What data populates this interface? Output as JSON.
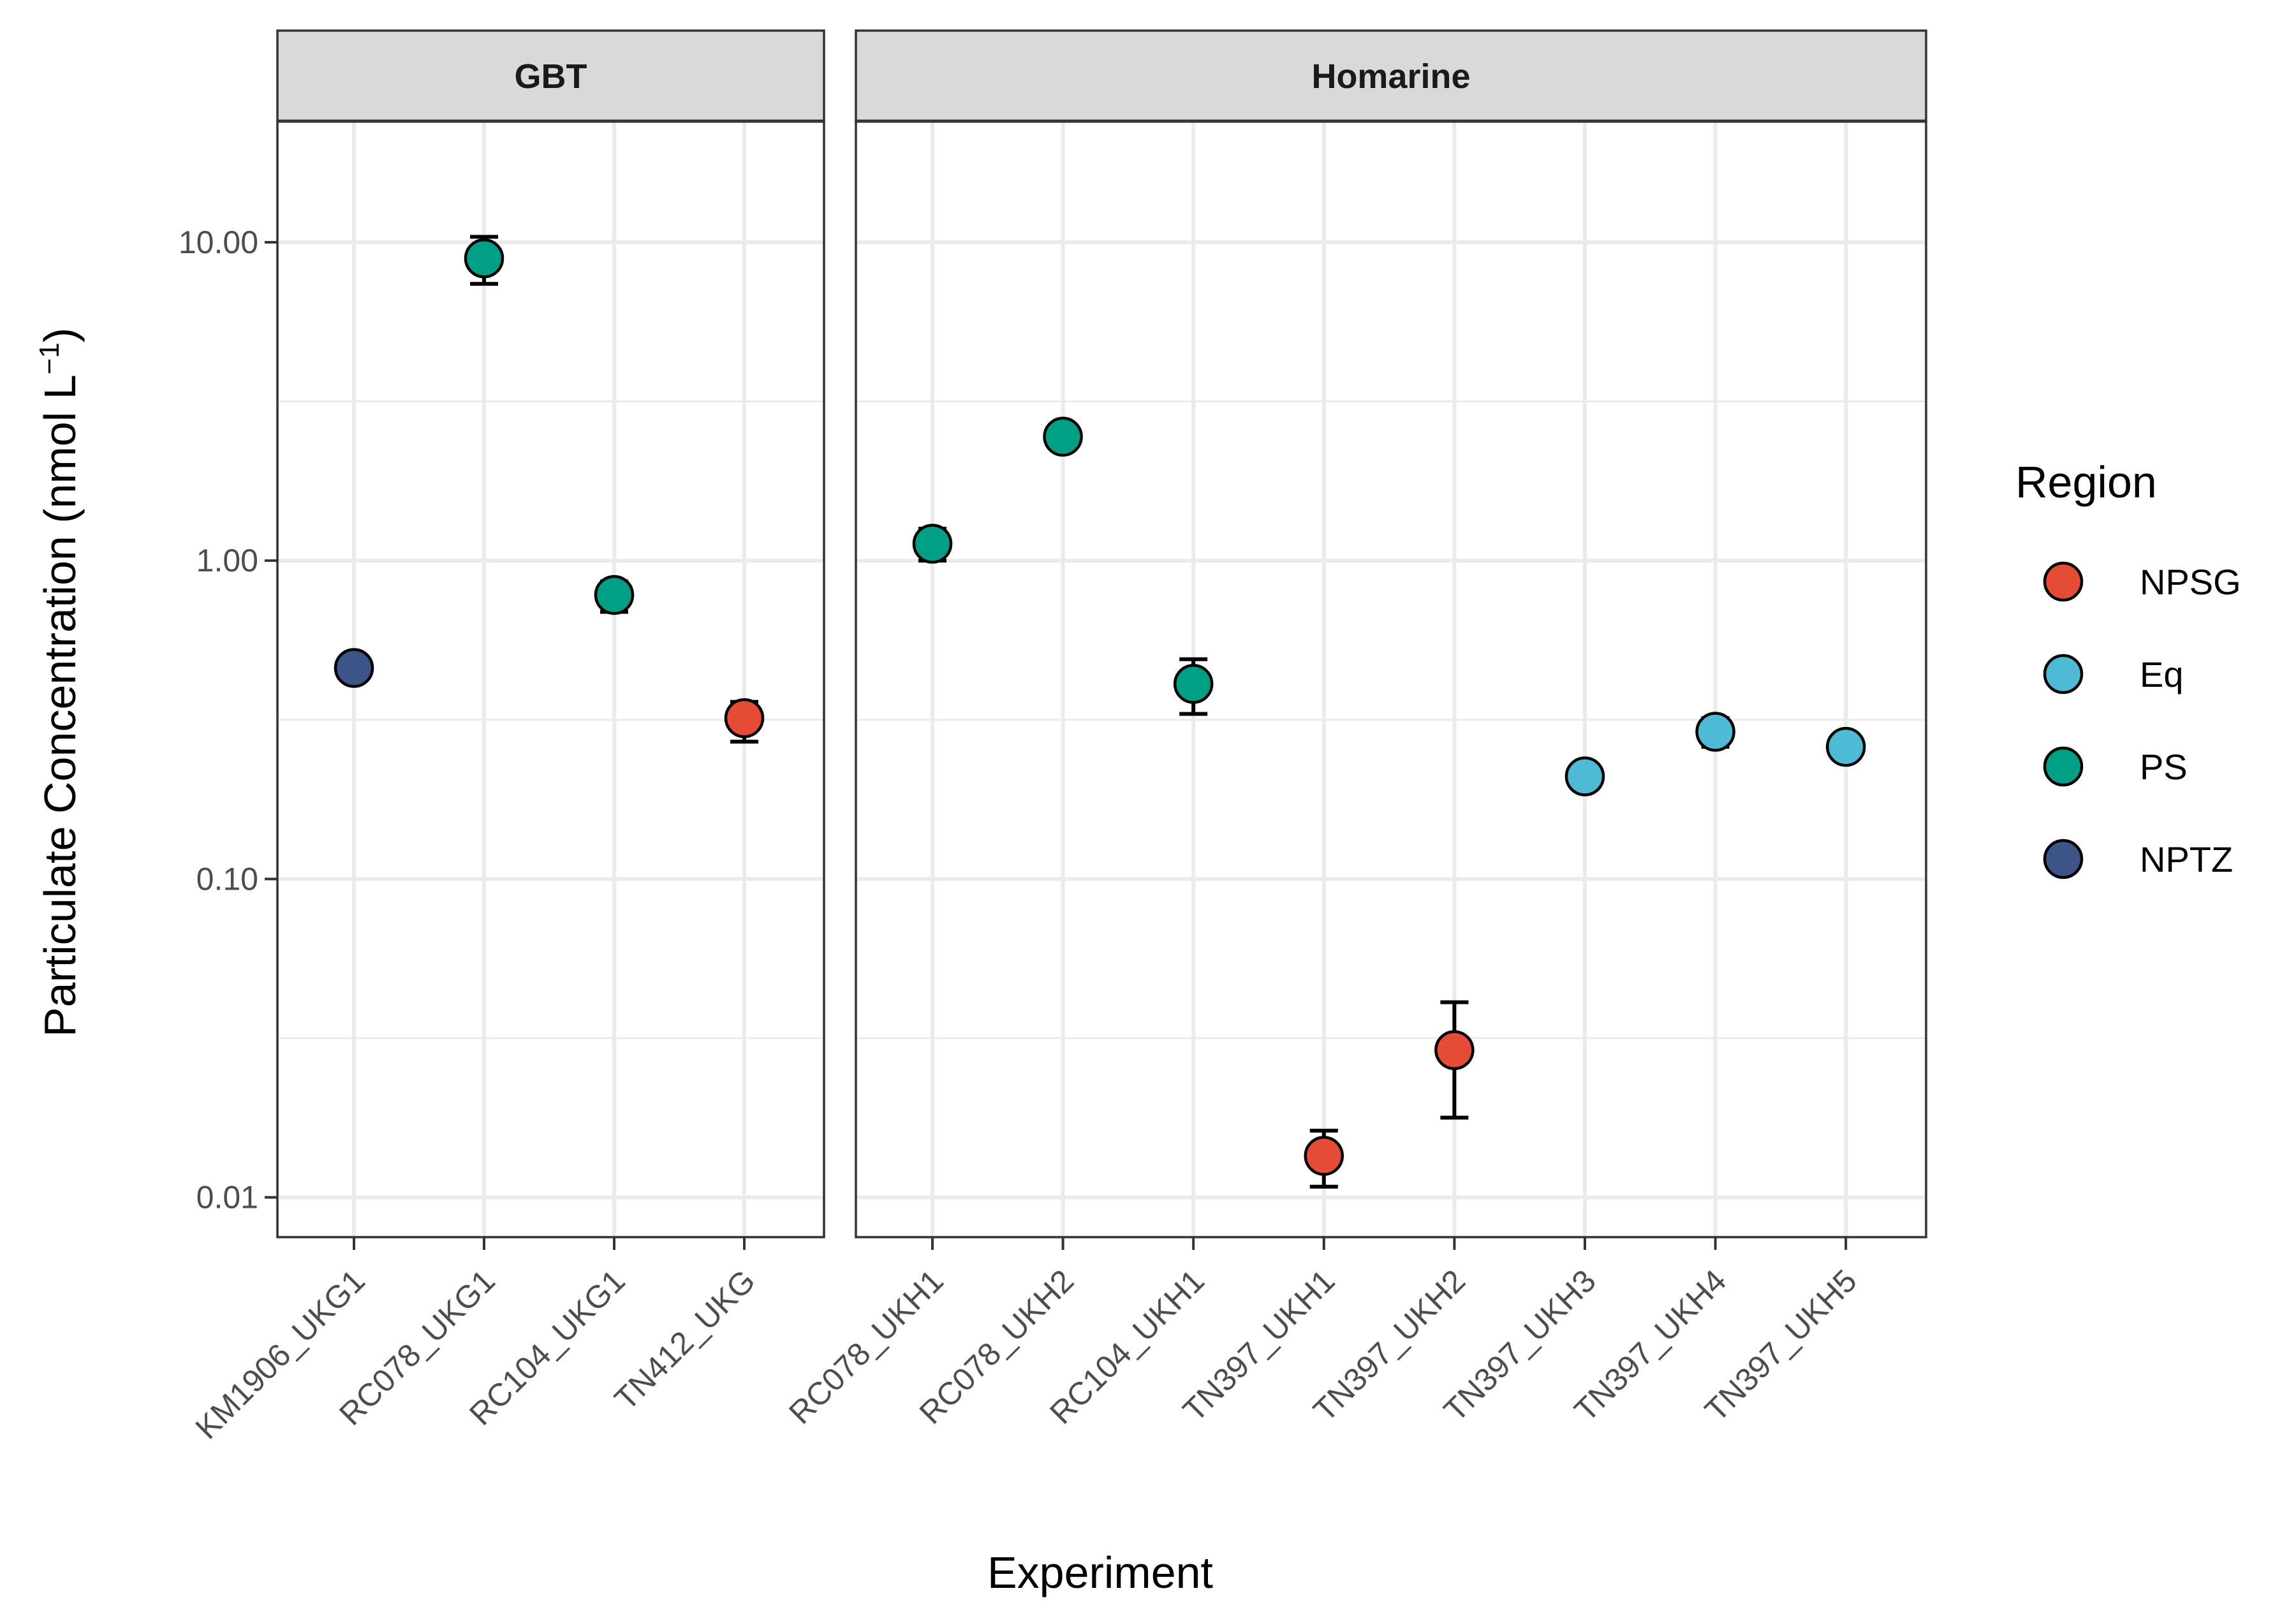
{
  "chart_data": {
    "type": "scatter",
    "y_scale": "log10",
    "ylim": [
      0.0075,
      24
    ],
    "y_ticks": [
      0.01,
      0.1,
      1,
      10
    ],
    "y_tick_labels": [
      "0.01",
      "0.10",
      "1.00",
      "10.00"
    ],
    "xlabel": "Experiment",
    "ylabel": {
      "main": "Particulate Concentration (nmol L",
      "superscript": "−1",
      "close": ")"
    },
    "grid": true,
    "legend": {
      "title": "Region",
      "position": "right",
      "entries": [
        {
          "label": "NPSG",
          "color": "#E64B35"
        },
        {
          "label": "Eq",
          "color": "#4DBBD5"
        },
        {
          "label": "PS",
          "color": "#00A087"
        },
        {
          "label": "NPTZ",
          "color": "#3C5488"
        }
      ]
    },
    "facets": [
      {
        "title": "GBT",
        "categories": [
          "KM1906_UKG1",
          "RC078_UKG1",
          "RC104_UKG1",
          "TN412_UKG"
        ],
        "points": [
          {
            "x": "KM1906_UKG1",
            "y": 0.46,
            "region": "NPTZ"
          },
          {
            "x": "RC078_UKG1",
            "y": 8.9,
            "lower": 7.4,
            "upper": 10.4,
            "region": "PS"
          },
          {
            "x": "RC104_UKG1",
            "y": 0.78,
            "lower": 0.69,
            "upper": 0.86,
            "region": "PS"
          },
          {
            "x": "TN412_UKG",
            "y": 0.32,
            "lower": 0.27,
            "upper": 0.36,
            "region": "NPSG"
          }
        ]
      },
      {
        "title": "Homarine",
        "categories": [
          "RC078_UKH1",
          "RC078_UKH2",
          "RC104_UKH1",
          "TN397_UKH1",
          "TN397_UKH2",
          "TN397_UKH3",
          "TN397_UKH4",
          "TN397_UKH5"
        ],
        "points": [
          {
            "x": "RC078_UKH1",
            "y": 1.13,
            "lower": 1.0,
            "upper": 1.26,
            "region": "PS"
          },
          {
            "x": "RC078_UKH2",
            "y": 2.45,
            "region": "PS"
          },
          {
            "x": "RC104_UKH1",
            "y": 0.41,
            "lower": 0.33,
            "upper": 0.49,
            "region": "PS"
          },
          {
            "x": "TN397_UKH1",
            "y": 0.0135,
            "lower": 0.0108,
            "upper": 0.0162,
            "region": "NPSG"
          },
          {
            "x": "TN397_UKH2",
            "y": 0.029,
            "lower": 0.0178,
            "upper": 0.041,
            "region": "NPSG"
          },
          {
            "x": "TN397_UKH3",
            "y": 0.21,
            "region": "Eq"
          },
          {
            "x": "TN397_UKH4",
            "y": 0.29,
            "lower": 0.26,
            "upper": 0.32,
            "region": "Eq"
          },
          {
            "x": "TN397_UKH5",
            "y": 0.26,
            "region": "Eq"
          }
        ]
      }
    ]
  }
}
